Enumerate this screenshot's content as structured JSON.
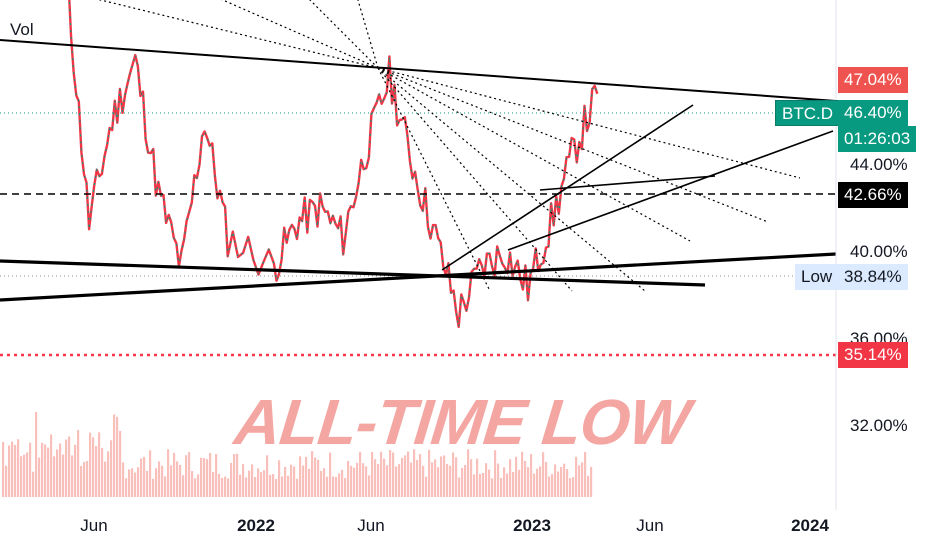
{
  "chart_data": {
    "type": "candlestick",
    "symbol": "BTC.D",
    "pane_label": "Vol",
    "y_unit": "%",
    "y_ticks": [
      "44.00%",
      "40.00%",
      "36.00%",
      "32.00%"
    ],
    "x_ticks": [
      {
        "label": "Jun",
        "bold": false
      },
      {
        "label": "2022",
        "bold": true
      },
      {
        "label": "Jun",
        "bold": false
      },
      {
        "label": "2023",
        "bold": true
      },
      {
        "label": "Jun",
        "bold": false
      },
      {
        "label": "2024",
        "bold": true
      }
    ],
    "price_badges": {
      "high": {
        "value": "47.04%",
        "color": "#ef5350"
      },
      "last": {
        "value": "46.40%",
        "countdown": "01:26:03",
        "color": "#089981",
        "label": "BTC.D"
      },
      "dashed_level": {
        "value": "42.66%",
        "color": "#000000"
      },
      "low": {
        "value": "38.84%",
        "label": "Low",
        "color": "#dbeafe"
      },
      "all_time_low": {
        "value": "35.14%",
        "color": "#f23645"
      }
    },
    "annotation": "ALL-TIME LOW",
    "series_close_approx": [
      {
        "date": "2021-04",
        "value": 50.5
      },
      {
        "date": "2021-05",
        "value": 42.0
      },
      {
        "date": "2021-06",
        "value": 45.5
      },
      {
        "date": "2021-07",
        "value": 47.5
      },
      {
        "date": "2021-08",
        "value": 43.0
      },
      {
        "date": "2021-09",
        "value": 40.5
      },
      {
        "date": "2021-10",
        "value": 45.5
      },
      {
        "date": "2021-11",
        "value": 41.5
      },
      {
        "date": "2022-01",
        "value": 40.5
      },
      {
        "date": "2022-02",
        "value": 42.0
      },
      {
        "date": "2022-03",
        "value": 42.5
      },
      {
        "date": "2022-04",
        "value": 41.5
      },
      {
        "date": "2022-05",
        "value": 44.5
      },
      {
        "date": "2022-06",
        "value": 47.0
      },
      {
        "date": "2022-07",
        "value": 44.0
      },
      {
        "date": "2022-08",
        "value": 41.5
      },
      {
        "date": "2022-09",
        "value": 38.9
      },
      {
        "date": "2022-10",
        "value": 40.5
      },
      {
        "date": "2022-11",
        "value": 41.0
      },
      {
        "date": "2022-12",
        "value": 39.8
      },
      {
        "date": "2023-01",
        "value": 42.0
      },
      {
        "date": "2023-02",
        "value": 44.5
      },
      {
        "date": "2023-03",
        "value": 46.4
      }
    ],
    "colors": {
      "up": "#089981",
      "down": "#f23645",
      "volume": "#f7b8b4"
    }
  }
}
